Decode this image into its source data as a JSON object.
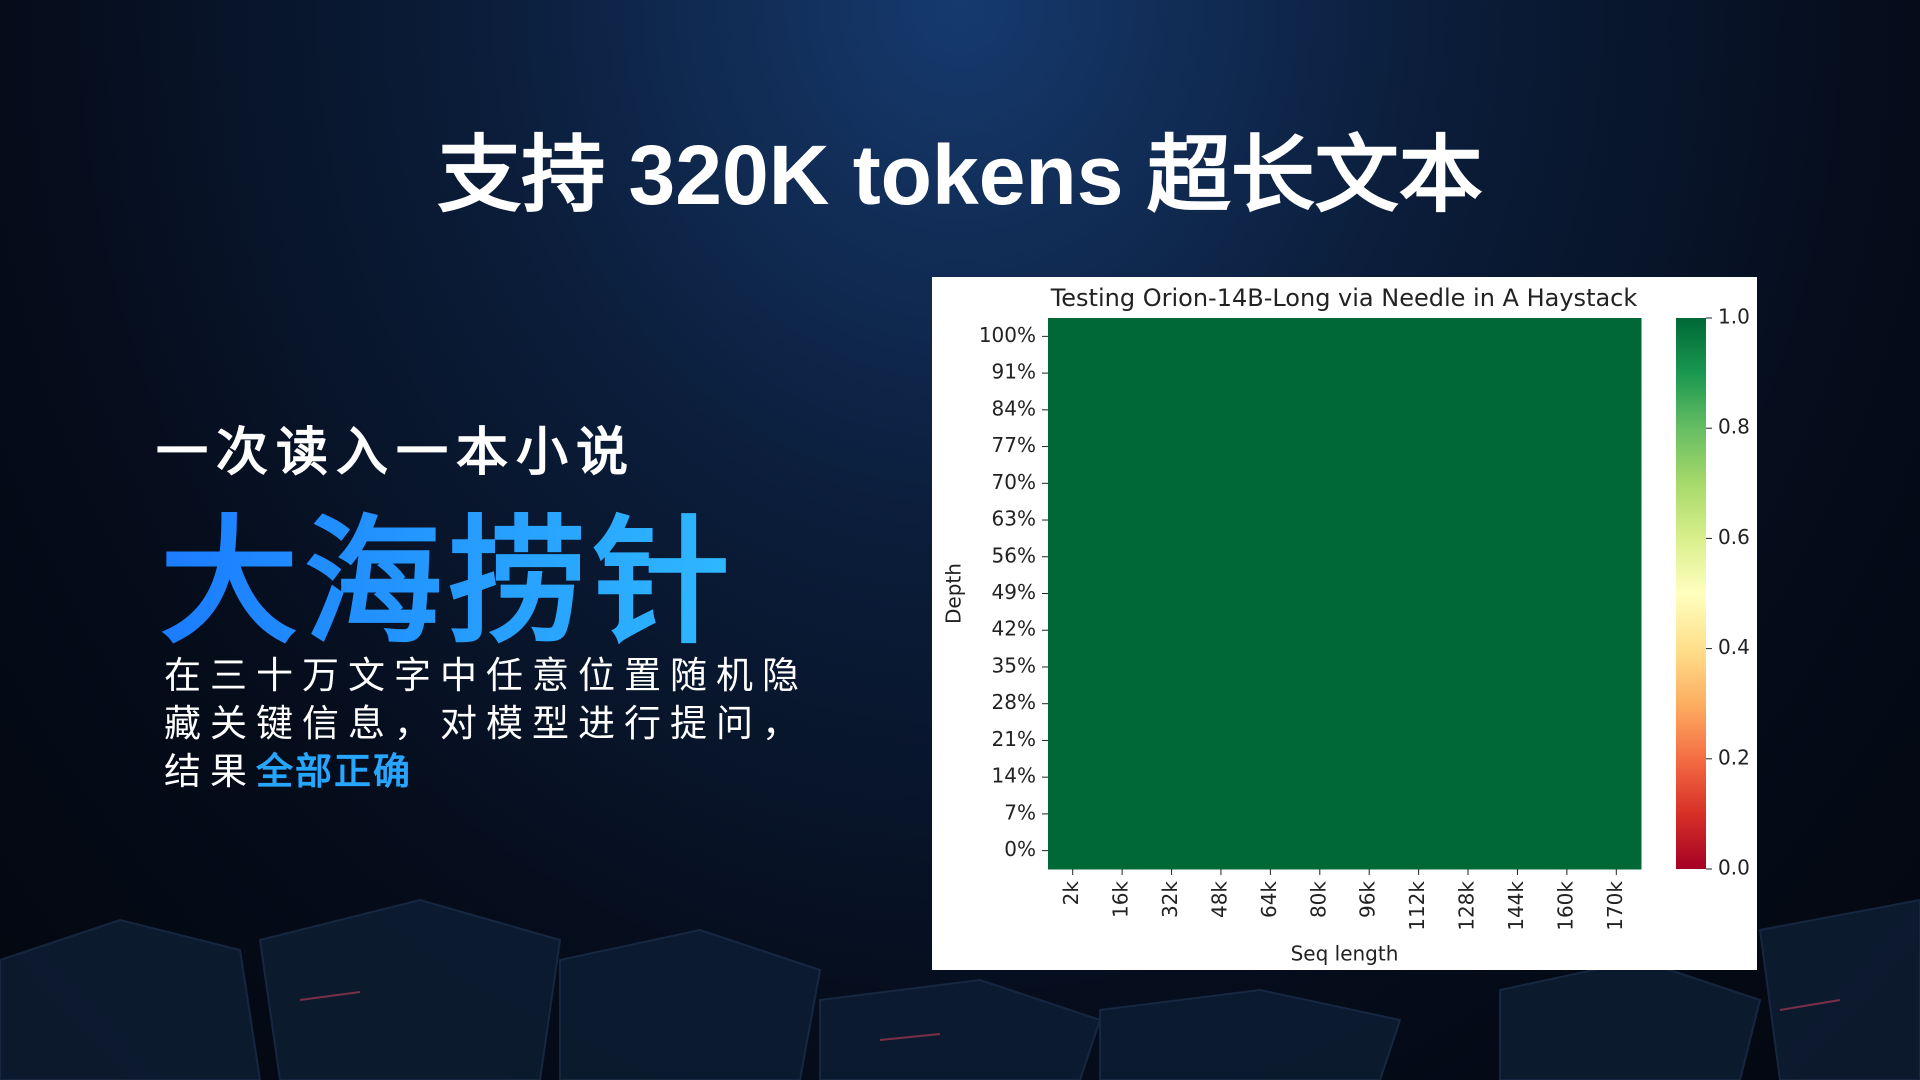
{
  "slide": {
    "title": "支持 320K tokens 超长文本",
    "subtitle": "一次读入一本小说",
    "headline": "大海捞针",
    "body_lines": [
      "在三十万文字中任意位置随机隐",
      "藏关键信息，对模型进行提问，"
    ],
    "body_last": "结果",
    "body_highlight": "全部正确"
  },
  "chart_data": {
    "type": "heatmap",
    "title": "Testing Orion-14B-Long via Needle in A Haystack",
    "xlabel": "Seq length",
    "ylabel": "Depth",
    "x": [
      "2k",
      "16k",
      "32k",
      "48k",
      "64k",
      "80k",
      "96k",
      "112k",
      "128k",
      "144k",
      "160k",
      "170k"
    ],
    "y": [
      "0%",
      "7%",
      "14%",
      "21%",
      "28%",
      "35%",
      "42%",
      "49%",
      "56%",
      "63%",
      "70%",
      "77%",
      "84%",
      "91%",
      "100%"
    ],
    "values": [
      [
        1,
        1,
        1,
        1,
        1,
        1,
        1,
        1,
        1,
        1,
        1,
        1
      ],
      [
        1,
        1,
        1,
        1,
        1,
        1,
        1,
        1,
        1,
        1,
        1,
        1
      ],
      [
        1,
        1,
        1,
        1,
        1,
        1,
        1,
        1,
        1,
        1,
        1,
        1
      ],
      [
        1,
        1,
        1,
        1,
        1,
        1,
        1,
        1,
        1,
        1,
        1,
        1
      ],
      [
        1,
        1,
        1,
        1,
        1,
        1,
        1,
        1,
        1,
        1,
        1,
        1
      ],
      [
        1,
        1,
        1,
        1,
        1,
        1,
        1,
        1,
        1,
        1,
        1,
        1
      ],
      [
        1,
        1,
        1,
        1,
        1,
        1,
        1,
        1,
        1,
        1,
        1,
        1
      ],
      [
        1,
        1,
        1,
        1,
        1,
        1,
        1,
        1,
        1,
        1,
        1,
        1
      ],
      [
        1,
        1,
        1,
        1,
        1,
        1,
        1,
        1,
        1,
        1,
        1,
        1
      ],
      [
        1,
        1,
        1,
        1,
        1,
        1,
        1,
        1,
        1,
        1,
        1,
        1
      ],
      [
        1,
        1,
        1,
        1,
        1,
        1,
        1,
        1,
        1,
        1,
        1,
        1
      ],
      [
        1,
        1,
        1,
        1,
        1,
        1,
        1,
        1,
        1,
        1,
        1,
        1
      ],
      [
        1,
        1,
        1,
        1,
        1,
        1,
        1,
        1,
        1,
        1,
        1,
        1
      ],
      [
        1,
        1,
        1,
        1,
        1,
        1,
        1,
        1,
        1,
        1,
        1,
        1
      ],
      [
        1,
        1,
        1,
        1,
        1,
        1,
        1,
        1,
        1,
        1,
        1,
        1
      ]
    ],
    "colormap": "RdYlGn",
    "clim": [
      0,
      1
    ],
    "cticks": [
      {
        "value": 0,
        "label": "0.0"
      },
      0.2,
      0.4,
      0.6,
      0.8,
      {
        "value": 1,
        "label": "1.0"
      }
    ]
  }
}
